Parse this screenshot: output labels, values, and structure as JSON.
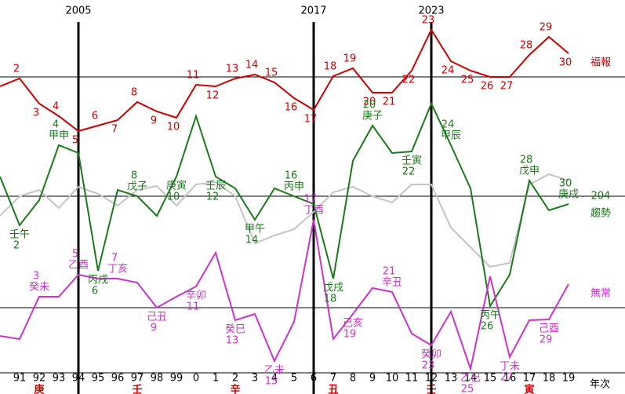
{
  "chart_data": {
    "type": "line",
    "categories": [
      null,
      "91",
      "92",
      "93",
      "94",
      "95",
      "96",
      "97",
      "98",
      "99",
      "0",
      "1",
      "2",
      "3",
      "4",
      "5",
      "6",
      "7",
      "8",
      "9",
      "10",
      "11",
      "12",
      "13",
      "14",
      "15",
      "16",
      "17",
      "18",
      "19"
    ],
    "x_label": "年次",
    "bottom_labels": [
      null,
      null,
      "庚",
      null,
      null,
      null,
      null,
      "壬",
      null,
      null,
      null,
      null,
      "辛",
      null,
      null,
      null,
      null,
      "丑",
      null,
      null,
      null,
      null,
      "壬",
      null,
      null,
      null,
      null,
      "寅",
      null,
      null
    ],
    "ylim": [
      0,
      500
    ],
    "hlines": [
      402,
      250,
      108,
      25
    ],
    "markers": [
      {
        "label": "2005",
        "at": "94"
      },
      {
        "label": "2017",
        "at": "6"
      },
      {
        "label": "2023",
        "at": "12"
      }
    ],
    "series": [
      {
        "name": "福報",
        "color": "#cc0000",
        "values": [
          390,
          400,
          368,
          352,
          333,
          340,
          347,
          370,
          358,
          350,
          392,
          390,
          400,
          405,
          395,
          375,
          360,
          403,
          413,
          382,
          382,
          410,
          462,
          422,
          410,
          402,
          402,
          430,
          453,
          432
        ],
        "point_labels": [
          null,
          2,
          3,
          4,
          5,
          6,
          7,
          8,
          9,
          10,
          11,
          12,
          13,
          14,
          15,
          16,
          17,
          18,
          19,
          20,
          21,
          22,
          23,
          24,
          25,
          26,
          27,
          28,
          29,
          30
        ],
        "point_names": [
          null,
          null,
          null,
          null,
          null,
          null,
          null,
          null,
          null,
          null,
          null,
          null,
          null,
          null,
          null,
          null,
          null,
          null,
          null,
          null,
          null,
          null,
          null,
          null,
          null,
          null,
          null,
          null,
          null,
          null
        ]
      },
      {
        "name": "趨勢",
        "color": "#1a7a1a",
        "note": "204",
        "values": [
          275,
          213,
          245,
          315,
          305,
          155,
          258,
          250,
          225,
          275,
          352,
          275,
          260,
          220,
          260,
          250,
          240,
          145,
          295,
          340,
          305,
          307,
          368,
          315,
          260,
          110,
          150,
          270,
          232,
          240
        ],
        "point_labels": [
          null,
          2,
          null,
          4,
          null,
          6,
          null,
          8,
          null,
          10,
          null,
          12,
          null,
          14,
          null,
          16,
          null,
          18,
          null,
          20,
          null,
          22,
          null,
          24,
          null,
          26,
          null,
          28,
          null,
          30
        ],
        "point_names": [
          null,
          "壬午",
          null,
          "甲申",
          null,
          "丙戌",
          null,
          "戊子",
          null,
          "庚寅",
          null,
          "壬辰",
          null,
          "甲午",
          null,
          "丙申",
          null,
          "戊戌",
          null,
          "庚子",
          null,
          "壬寅",
          null,
          "甲辰",
          null,
          "丙午",
          null,
          "戊申",
          null,
          "庚戌"
        ]
      },
      {
        "name": "無常",
        "color": "#cc33cc",
        "values": [
          72,
          68,
          122,
          122,
          150,
          145,
          145,
          140,
          108,
          122,
          135,
          178,
          92,
          100,
          40,
          90,
          220,
          68,
          100,
          133,
          128,
          75,
          60,
          103,
          30,
          148,
          45,
          92,
          93,
          138
        ],
        "point_labels": [
          null,
          null,
          3,
          null,
          5,
          null,
          7,
          null,
          9,
          null,
          11,
          null,
          13,
          null,
          15,
          null,
          17,
          null,
          19,
          null,
          21,
          null,
          23,
          null,
          25,
          null,
          27,
          null,
          29,
          null
        ],
        "point_names": [
          null,
          null,
          "癸未",
          null,
          "乙酉",
          null,
          "丁亥",
          null,
          "己丑",
          null,
          "辛卯",
          null,
          "癸巳",
          null,
          "乙未",
          null,
          "丁酉",
          null,
          "己亥",
          null,
          "辛丑",
          null,
          "癸卯",
          null,
          "乙巳",
          null,
          "丁未",
          null,
          "己酉",
          null
        ]
      },
      {
        "color": "#c4c4c4",
        "values": [
          225,
          250,
          258,
          235,
          262,
          253,
          238,
          258,
          263,
          238,
          265,
          268,
          250,
          190,
          200,
          208,
          230,
          255,
          262,
          250,
          242,
          265,
          265,
          210,
          185,
          160,
          165,
          265,
          278,
          270
        ]
      }
    ]
  }
}
